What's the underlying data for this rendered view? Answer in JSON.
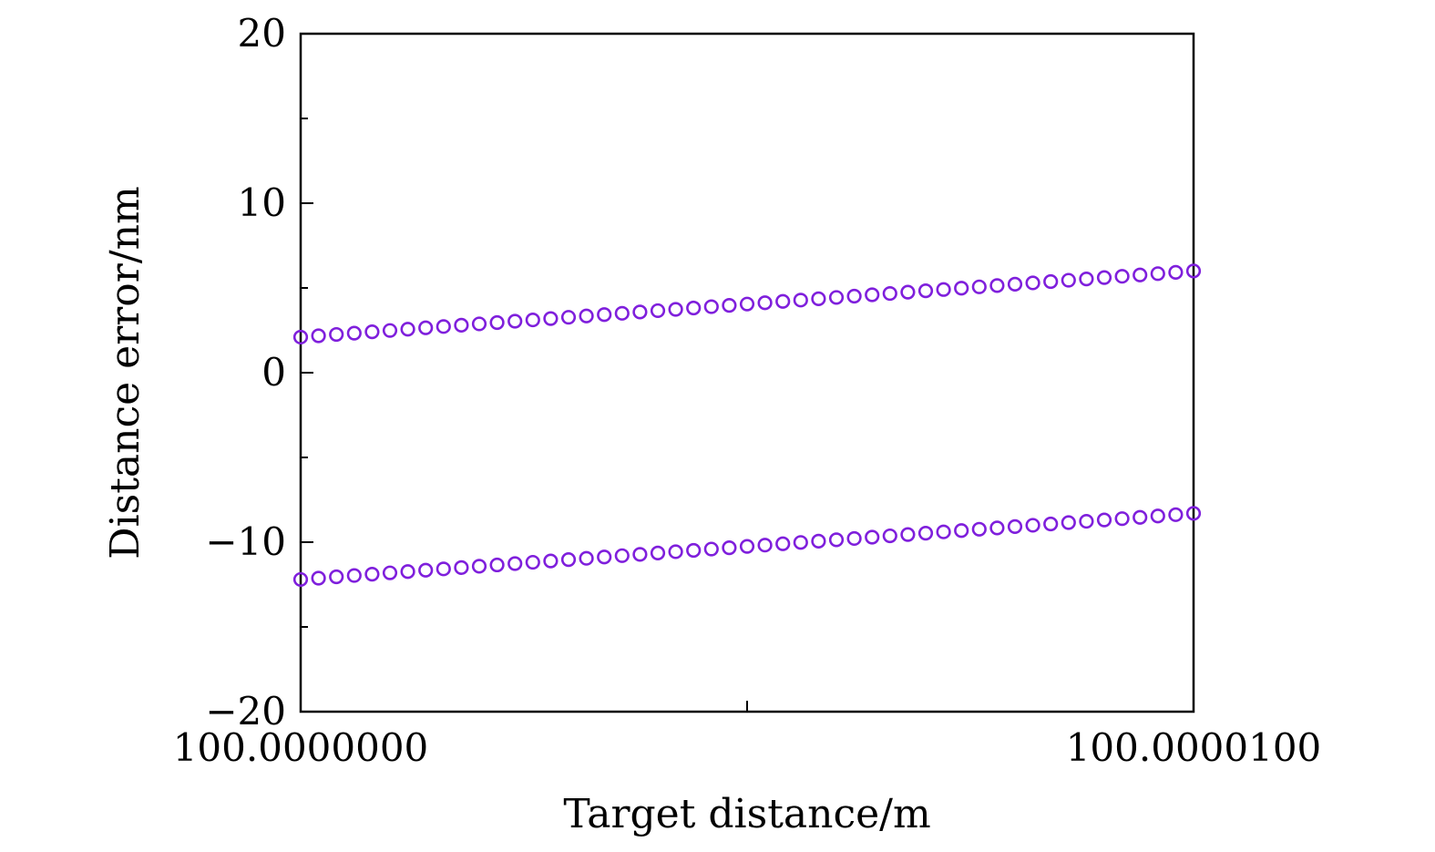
{
  "chart_data": {
    "type": "scatter",
    "xlabel": "Target distance/m",
    "ylabel": "Distance error/nm",
    "xlim": [
      100.0,
      100.00001
    ],
    "ylim": [
      -20,
      20
    ],
    "y_ticks": [
      20,
      10,
      0,
      -10,
      -20
    ],
    "y_tick_labels": [
      "20",
      "10",
      "0",
      "−10",
      "−20"
    ],
    "x_ticks": [
      100.0,
      100.000005,
      100.00001
    ],
    "x_tick_labels": [
      "100.0000000",
      "",
      "100.0000100"
    ],
    "marker": "open-circle",
    "marker_color": "#7f1fdc",
    "grid": false,
    "point_count_per_series": 51,
    "series": [
      {
        "x_start": 100.0,
        "x_end": 100.00001,
        "y_start": 2.1,
        "y_end": 6.0
      },
      {
        "x_start": 100.0,
        "x_end": 100.00001,
        "y_start": -12.2,
        "y_end": -8.3
      }
    ]
  }
}
